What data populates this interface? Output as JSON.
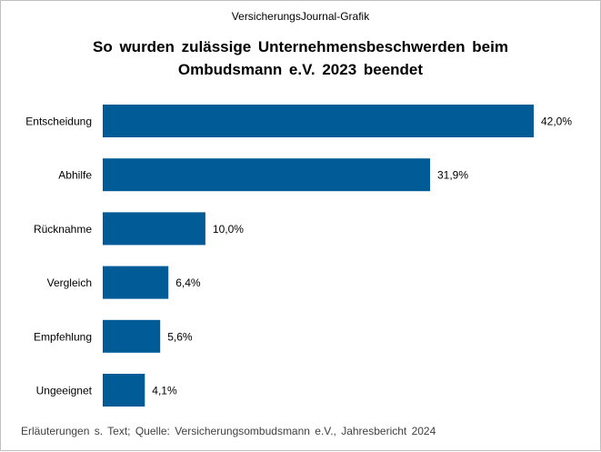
{
  "header": {
    "publisher": "VersicherungsJournal-Grafik",
    "title_line1": "So wurden zulässige Unternehmensbeschwerden beim",
    "title_line2": "Ombudsmann e.V. 2023 beendet"
  },
  "footnote": "Erläuterungen s. Text; Quelle: Versicherungsombudsmann e.V., Jahresbericht 2024",
  "chart_data": {
    "type": "bar",
    "orientation": "horizontal",
    "categories": [
      "Entscheidung",
      "Abhilfe",
      "Rücknahme",
      "Vergleich",
      "Empfehlung",
      "Ungeeignet"
    ],
    "values": [
      42.0,
      31.9,
      10.0,
      6.4,
      5.6,
      4.1
    ],
    "value_labels": [
      "42,0%",
      "31,9%",
      "10,0%",
      "6,4%",
      "5,6%",
      "4,1%"
    ],
    "unit": "%",
    "xlim": [
      0,
      42.0
    ],
    "grid": false,
    "bar_color": "#005B96"
  }
}
